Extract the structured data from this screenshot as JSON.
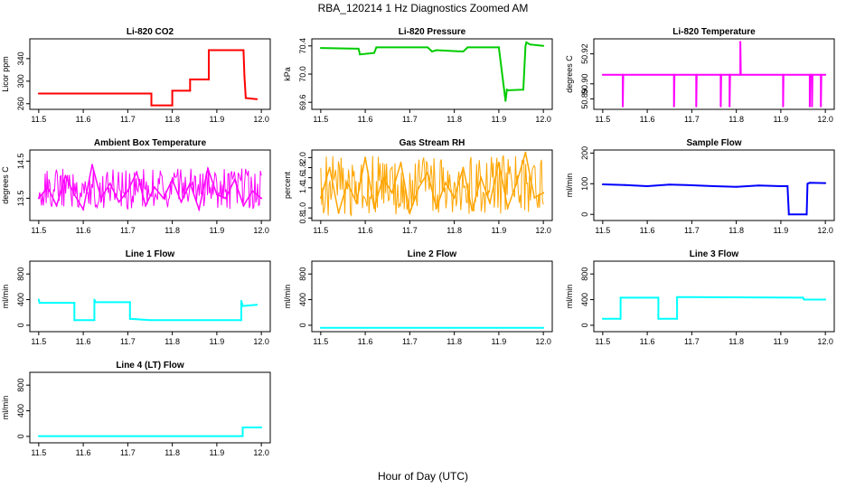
{
  "figure": {
    "title": "RBA_120214  1 Hz Diagnostics Zoomed AM",
    "xlabel": "Hour of Day (UTC)"
  },
  "chart_data": [
    {
      "type": "line",
      "title": "Li-820 CO2",
      "ylabel": "Licor ppm",
      "color": "#ff0000",
      "xlim": [
        11.48,
        12.02
      ],
      "ylim": [
        250,
        375
      ],
      "xticks": [
        "11.5",
        "11.6",
        "11.7",
        "11.8",
        "11.9",
        "12.0"
      ],
      "yticks": [
        {
          "v": 260,
          "t": "260"
        },
        {
          "v": 300,
          "t": "300"
        },
        {
          "v": 340,
          "t": "340"
        }
      ],
      "x": [
        11.5,
        11.753,
        11.753,
        11.8,
        11.8,
        11.84,
        11.84,
        11.882,
        11.882,
        11.96,
        11.962,
        11.965,
        11.99
      ],
      "y": [
        278,
        278,
        257,
        257,
        283,
        283,
        303,
        303,
        355,
        355,
        310,
        270,
        268
      ]
    },
    {
      "type": "line",
      "title": "Li-820 Pressure",
      "ylabel": "kPa",
      "color": "#00cc00",
      "xlim": [
        11.48,
        12.02
      ],
      "ylim": [
        69.5,
        70.5
      ],
      "xticks": [
        "11.5",
        "11.6",
        "11.7",
        "11.8",
        "11.9",
        "12.0"
      ],
      "yticks": [
        {
          "v": 69.6,
          "t": "69.6"
        },
        {
          "v": 70.0,
          "t": "70.0"
        },
        {
          "v": 70.4,
          "t": "70.4"
        }
      ],
      "x": [
        11.5,
        11.585,
        11.588,
        11.62,
        11.625,
        11.74,
        11.75,
        11.76,
        11.82,
        11.83,
        11.9,
        11.915,
        11.918,
        11.922,
        11.955,
        11.96,
        11.962,
        11.97,
        12.0
      ],
      "y": [
        70.37,
        70.36,
        70.28,
        70.3,
        70.38,
        70.38,
        70.32,
        70.34,
        70.32,
        70.38,
        70.38,
        69.62,
        69.78,
        69.77,
        69.78,
        70.4,
        70.45,
        70.42,
        70.4
      ]
    },
    {
      "type": "line",
      "title": "Li-820 Temperature",
      "ylabel": "degrees C",
      "color": "#ff00ff",
      "xlim": [
        11.48,
        12.02
      ],
      "ylim": [
        50.883,
        50.93
      ],
      "xticks": [
        "11.5",
        "11.6",
        "11.7",
        "11.8",
        "11.9",
        "12.0"
      ],
      "yticks": [
        {
          "v": 50.89,
          "t": "50.89"
        },
        {
          "v": 50.9,
          "t": "50.90"
        },
        {
          "v": 50.92,
          "t": "50.92"
        }
      ],
      "x": [
        11.5,
        11.545,
        11.545,
        11.546,
        11.66,
        11.66,
        11.661,
        11.71,
        11.71,
        11.711,
        11.765,
        11.765,
        11.766,
        11.785,
        11.785,
        11.786,
        11.809,
        11.809,
        11.81,
        11.905,
        11.905,
        11.906,
        11.965,
        11.965,
        11.966,
        11.97,
        11.97,
        11.971,
        11.99,
        11.99,
        11.991,
        12.0
      ],
      "y": [
        50.906,
        50.906,
        50.885,
        50.906,
        50.906,
        50.885,
        50.906,
        50.906,
        50.885,
        50.906,
        50.906,
        50.885,
        50.906,
        50.906,
        50.885,
        50.906,
        50.906,
        50.928,
        50.906,
        50.906,
        50.885,
        50.906,
        50.906,
        50.885,
        50.906,
        50.906,
        50.885,
        50.906,
        50.906,
        50.885,
        50.906,
        50.906
      ]
    },
    {
      "type": "line",
      "title": "Ambient Box Temperature",
      "ylabel": "degrees C",
      "color": "#ff00ff",
      "xlim": [
        11.48,
        12.02
      ],
      "ylim": [
        12.9,
        14.8
      ],
      "xticks": [
        "11.5",
        "11.6",
        "11.7",
        "11.8",
        "11.9",
        "12.0"
      ],
      "yticks": [
        {
          "v": 13.5,
          "t": "13.5"
        },
        {
          "v": 14.5,
          "t": "14.5"
        }
      ],
      "x": [
        11.5,
        11.52,
        11.54,
        11.56,
        11.58,
        11.6,
        11.62,
        11.64,
        11.66,
        11.68,
        11.7,
        11.72,
        11.74,
        11.76,
        11.78,
        11.8,
        11.82,
        11.84,
        11.86,
        11.88,
        11.9,
        11.92,
        11.94,
        11.96,
        11.98,
        12.0
      ],
      "y": [
        13.5,
        13.8,
        13.3,
        14.1,
        13.6,
        13.2,
        14.4,
        13.5,
        13.9,
        13.4,
        13.7,
        14.2,
        13.3,
        13.8,
        13.5,
        14.0,
        13.4,
        13.9,
        13.2,
        14.3,
        13.6,
        13.5,
        14.0,
        13.3,
        13.7,
        13.5
      ],
      "band": [
        13.2,
        14.3
      ]
    },
    {
      "type": "line",
      "title": "Gas Stream RH",
      "ylabel": "percent",
      "color": "#ffa500",
      "xlim": [
        11.48,
        12.02
      ],
      "ylim": [
        0.75,
        2.15
      ],
      "xticks": [
        "11.5",
        "11.6",
        "11.7",
        "11.8",
        "11.9",
        "12.0"
      ],
      "yticks": [
        {
          "v": 0.8,
          "t": "0.8"
        },
        {
          "v": 1.0,
          "t": "1.0"
        },
        {
          "v": 1.4,
          "t": "1.4"
        },
        {
          "v": 1.6,
          "t": "1.6"
        },
        {
          "v": 1.8,
          "t": "1.8"
        },
        {
          "v": 2.0,
          "t": "2.0"
        }
      ],
      "x": [
        11.5,
        11.52,
        11.54,
        11.56,
        11.58,
        11.6,
        11.62,
        11.64,
        11.66,
        11.68,
        11.7,
        11.72,
        11.74,
        11.76,
        11.78,
        11.8,
        11.82,
        11.84,
        11.86,
        11.88,
        11.9,
        11.92,
        11.94,
        11.96,
        11.98,
        12.0
      ],
      "y": [
        1.2,
        1.8,
        0.9,
        1.5,
        1.1,
        2.0,
        1.0,
        1.6,
        1.3,
        1.9,
        0.9,
        1.4,
        1.7,
        1.0,
        1.5,
        1.2,
        1.8,
        0.95,
        1.6,
        1.1,
        1.9,
        1.0,
        1.5,
        2.1,
        1.2,
        1.3
      ],
      "band": [
        0.85,
        2.05
      ]
    },
    {
      "type": "line",
      "title": "Sample Flow",
      "ylabel": "ml/min",
      "color": "#0000ff",
      "xlim": [
        11.48,
        12.02
      ],
      "ylim": [
        -20,
        210
      ],
      "xticks": [
        "11.5",
        "11.6",
        "11.7",
        "11.8",
        "11.9",
        "12.0"
      ],
      "yticks": [
        {
          "v": 0,
          "t": "0"
        },
        {
          "v": 100,
          "t": "100"
        },
        {
          "v": 200,
          "t": "200"
        }
      ],
      "x": [
        11.5,
        11.55,
        11.6,
        11.65,
        11.7,
        11.75,
        11.8,
        11.85,
        11.9,
        11.915,
        11.918,
        11.958,
        11.96,
        11.965,
        12.0
      ],
      "y": [
        98,
        96,
        92,
        97,
        95,
        92,
        90,
        94,
        92,
        92,
        0,
        0,
        100,
        103,
        102
      ]
    },
    {
      "type": "line",
      "title": "Line 1 Flow",
      "ylabel": "ml/min",
      "color": "#00ffff",
      "xlim": [
        11.48,
        12.02
      ],
      "ylim": [
        -100,
        1000
      ],
      "xticks": [
        "11.5",
        "11.6",
        "11.7",
        "11.8",
        "11.9",
        "12.0"
      ],
      "yticks": [
        {
          "v": 0,
          "t": "0"
        },
        {
          "v": 400,
          "t": "400"
        },
        {
          "v": 800,
          "t": "800"
        }
      ],
      "x": [
        11.5,
        11.502,
        11.58,
        11.58,
        11.625,
        11.625,
        11.628,
        11.705,
        11.705,
        11.75,
        11.955,
        11.955,
        11.958,
        11.99
      ],
      "y": [
        400,
        350,
        350,
        80,
        80,
        400,
        360,
        360,
        100,
        80,
        80,
        380,
        300,
        320
      ]
    },
    {
      "type": "line",
      "title": "Line 2 Flow",
      "ylabel": "ml/min",
      "color": "#00ffff",
      "xlim": [
        11.48,
        12.02
      ],
      "ylim": [
        -100,
        1000
      ],
      "xticks": [
        "11.5",
        "11.6",
        "11.7",
        "11.8",
        "11.9",
        "12.0"
      ],
      "yticks": [
        {
          "v": 0,
          "t": "0"
        },
        {
          "v": 400,
          "t": "400"
        },
        {
          "v": 800,
          "t": "800"
        }
      ],
      "x": [
        11.5,
        12.0
      ],
      "y": [
        -40,
        -40
      ]
    },
    {
      "type": "line",
      "title": "Line 3 Flow",
      "ylabel": "ml/min",
      "color": "#00ffff",
      "xlim": [
        11.48,
        12.02
      ],
      "ylim": [
        -100,
        1000
      ],
      "xticks": [
        "11.5",
        "11.6",
        "11.7",
        "11.8",
        "11.9",
        "12.0"
      ],
      "yticks": [
        {
          "v": 0,
          "t": "0"
        },
        {
          "v": 400,
          "t": "400"
        },
        {
          "v": 800,
          "t": "800"
        }
      ],
      "x": [
        11.5,
        11.54,
        11.54,
        11.625,
        11.625,
        11.667,
        11.667,
        11.95,
        11.952,
        12.0
      ],
      "y": [
        100,
        100,
        430,
        430,
        100,
        100,
        440,
        430,
        400,
        400
      ]
    },
    {
      "type": "line",
      "title": "Line 4 (LT) Flow",
      "ylabel": "ml/min",
      "color": "#00ffff",
      "xlim": [
        11.48,
        12.02
      ],
      "ylim": [
        -100,
        1000
      ],
      "xticks": [
        "11.5",
        "11.6",
        "11.7",
        "11.8",
        "11.9",
        "12.0"
      ],
      "yticks": [
        {
          "v": 0,
          "t": "0"
        },
        {
          "v": 400,
          "t": "400"
        },
        {
          "v": 800,
          "t": "800"
        }
      ],
      "x": [
        11.5,
        11.958,
        11.958,
        12.0
      ],
      "y": [
        5,
        5,
        140,
        140
      ]
    }
  ]
}
